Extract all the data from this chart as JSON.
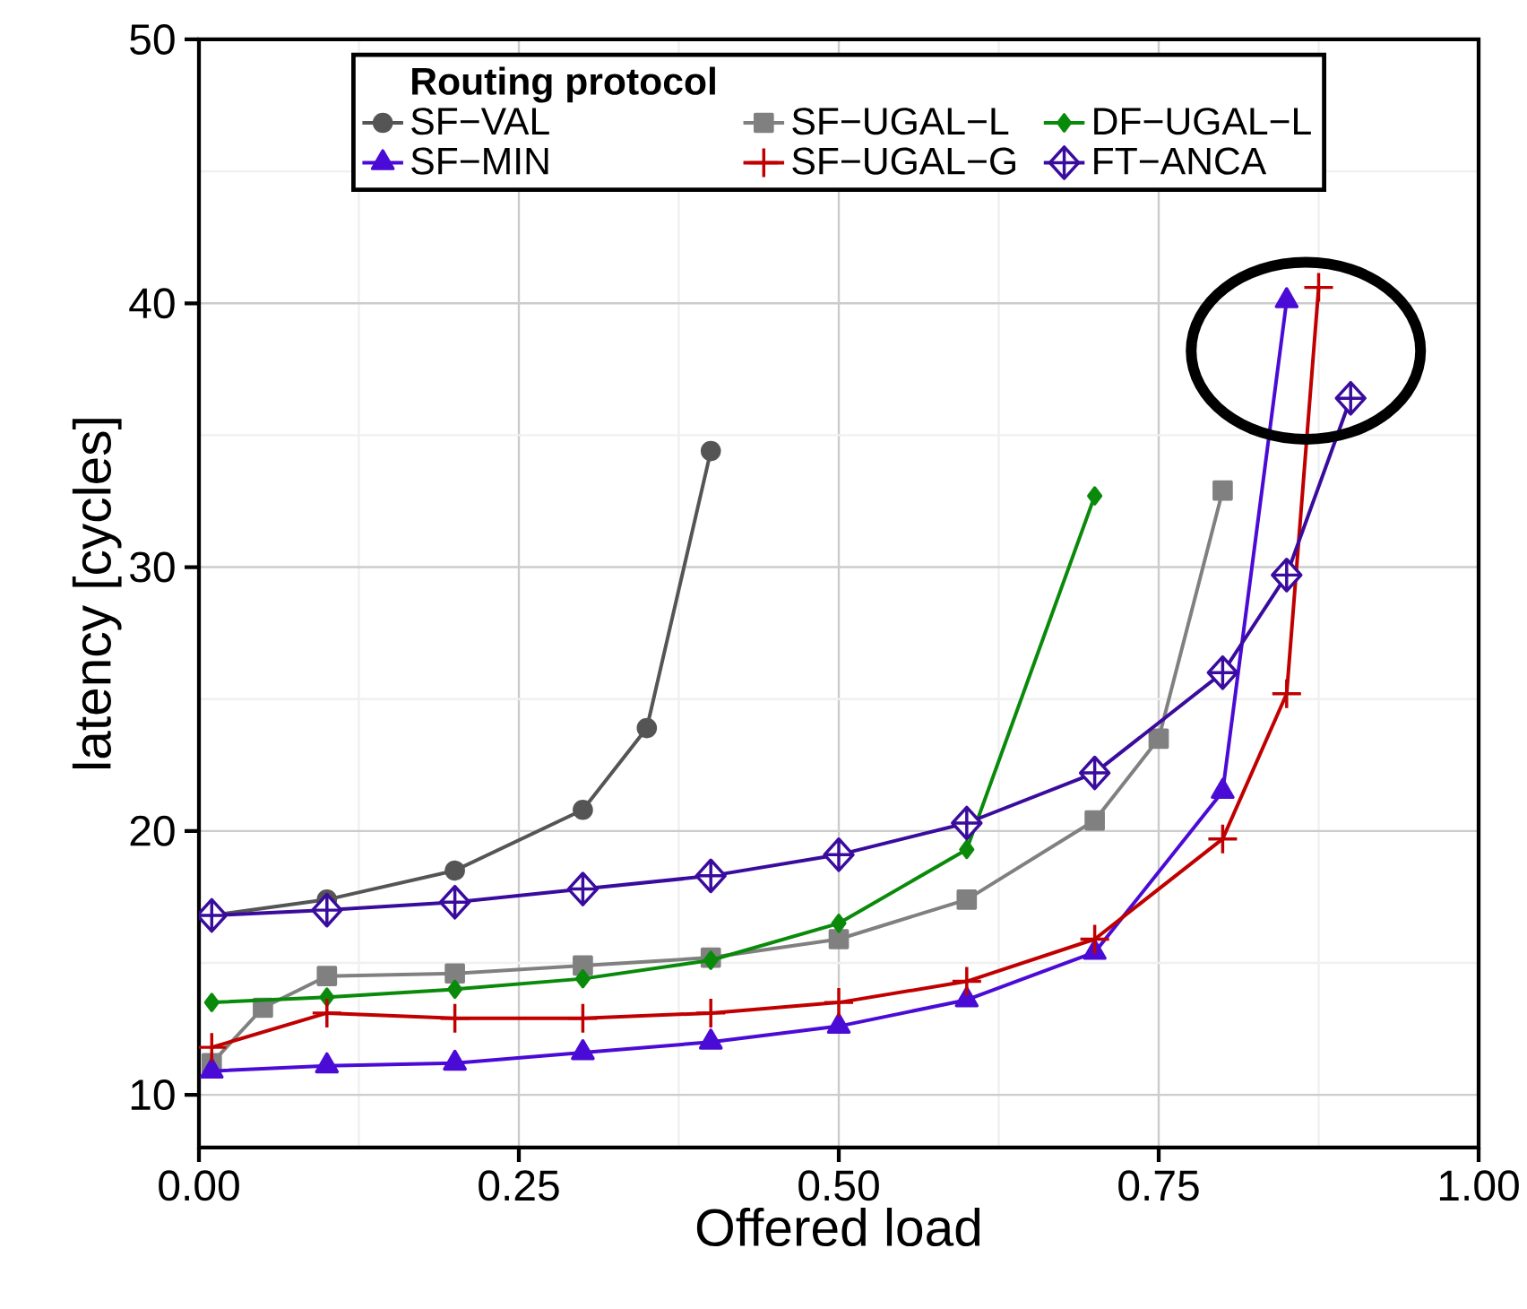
{
  "chart_data": {
    "type": "line",
    "xlabel": "Offered load",
    "ylabel": "latency [cycles]",
    "legend_title": "Routing protocol",
    "xlim": [
      0,
      1.0
    ],
    "ylim": [
      8,
      50
    ],
    "xticks": [
      {
        "value": 0,
        "label": "0.00"
      },
      {
        "value": 0.25,
        "label": "0.25"
      },
      {
        "value": 0.5,
        "label": "0.50"
      },
      {
        "value": 0.75,
        "label": "0.75"
      },
      {
        "value": 1.0,
        "label": "1.00"
      }
    ],
    "yticks": [
      10,
      20,
      30,
      40,
      50
    ],
    "grid": true,
    "legend": "top",
    "line_style": "solid",
    "series": [
      {
        "name": "SF−VAL",
        "color": "#555555",
        "marker": "circle",
        "x": [
          0.01,
          0.1,
          0.2,
          0.3,
          0.35,
          0.4
        ],
        "values": [
          16.8,
          17.4,
          18.5,
          20.8,
          23.9,
          34.4
        ]
      },
      {
        "name": "SF−UGAL−L",
        "color": "#808080",
        "marker": "square",
        "x": [
          0.01,
          0.05,
          0.1,
          0.2,
          0.3,
          0.4,
          0.5,
          0.6,
          0.7,
          0.75,
          0.8
        ],
        "values": [
          11.2,
          13.3,
          14.5,
          14.6,
          14.9,
          15.2,
          15.9,
          17.4,
          20.4,
          23.5,
          32.9
        ]
      },
      {
        "name": "DF−UGAL−L",
        "color": "#0a8a0a",
        "marker": "diamond",
        "x": [
          0.01,
          0.1,
          0.2,
          0.3,
          0.4,
          0.5,
          0.6,
          0.7
        ],
        "values": [
          13.5,
          13.7,
          14.0,
          14.4,
          15.1,
          16.5,
          19.3,
          32.7
        ]
      },
      {
        "name": "SF−MIN",
        "color": "#4b0bd6",
        "marker": "triangle",
        "x": [
          0.01,
          0.1,
          0.2,
          0.3,
          0.4,
          0.5,
          0.6,
          0.7,
          0.8,
          0.85
        ],
        "values": [
          10.9,
          11.1,
          11.2,
          11.6,
          12.0,
          12.6,
          13.6,
          15.4,
          21.5,
          40.1
        ]
      },
      {
        "name": "SF−UGAL−G",
        "color": "#c00000",
        "marker": "cross",
        "x": [
          0.01,
          0.1,
          0.2,
          0.3,
          0.4,
          0.5,
          0.6,
          0.7,
          0.8,
          0.85,
          0.875
        ],
        "values": [
          11.8,
          13.1,
          12.9,
          12.9,
          13.1,
          13.5,
          14.3,
          15.9,
          19.7,
          25.2,
          40.6
        ]
      },
      {
        "name": "FT−ANCA",
        "color": "#3a0c9e",
        "marker": "diamond+",
        "x": [
          0.01,
          0.1,
          0.2,
          0.3,
          0.4,
          0.5,
          0.6,
          0.7,
          0.8,
          0.85,
          0.9
        ],
        "values": [
          16.8,
          17.0,
          17.3,
          17.8,
          18.3,
          19.1,
          20.3,
          22.2,
          26.0,
          29.7,
          36.4
        ]
      }
    ]
  }
}
